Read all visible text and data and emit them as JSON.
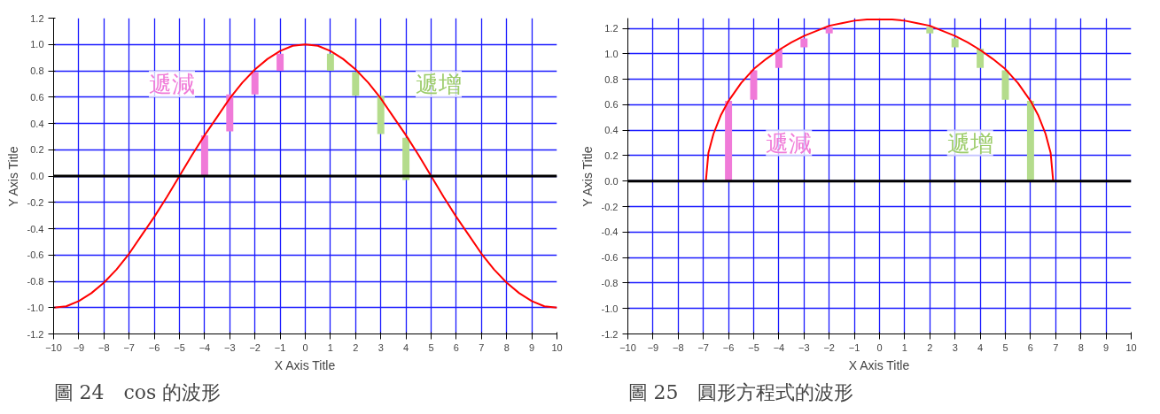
{
  "chart_data": [
    {
      "type": "line",
      "title": "圖 24　cos 的波形",
      "xlabel": "X Axis Title",
      "ylabel": "Y Axis Title",
      "xlim": [
        -10,
        10
      ],
      "ylim": [
        -1.2,
        1.2
      ],
      "xticks": [
        -10,
        -9,
        -8,
        -7,
        -6,
        -5,
        -4,
        -3,
        -2,
        -1,
        0,
        1,
        2,
        3,
        4,
        5,
        6,
        7,
        8,
        9,
        10
      ],
      "yticks": [
        {
          "value": -1.2,
          "label": "-1.2"
        },
        {
          "value": -1.0,
          "label": "-1.0"
        },
        {
          "value": -0.8,
          "label": "-0.8"
        },
        {
          "value": -0.6,
          "label": "-0.6"
        },
        {
          "value": -0.4,
          "label": "-0.4"
        },
        {
          "value": -0.2,
          "label": "-0.2"
        },
        {
          "value": 0,
          "label": "0.0"
        },
        {
          "value": 0.2,
          "label": "0.2"
        },
        {
          "value": 0.4,
          "label": "0.4"
        },
        {
          "value": 0.6,
          "label": "0.6"
        },
        {
          "value": 0.8,
          "label": "0.8"
        },
        {
          "value": 1.0,
          "label": "1.0"
        },
        {
          "value": 1.2,
          "label": "1.2"
        }
      ],
      "grid": true,
      "marker": "none",
      "line_style": "solid",
      "ref_lines": [
        {
          "axis": "y",
          "value": 0,
          "color": "#000000"
        }
      ],
      "annotations": [
        "遞減",
        "遞增"
      ],
      "series": [
        {
          "color": "#ff0000",
          "x": [
            -10,
            -9.5,
            -9,
            -8.5,
            -8,
            -7.5,
            -7,
            -6.5,
            -6,
            -5.5,
            -5,
            -4.5,
            -4,
            -3.5,
            -3,
            -2.5,
            -2,
            -1.5,
            -1,
            -0.5,
            0,
            0.5,
            1,
            1.5,
            2,
            2.5,
            3,
            3.5,
            4,
            4.5,
            5,
            5.5,
            6,
            6.5,
            7,
            7.5,
            8,
            8.5,
            9,
            9.5,
            10
          ],
          "values": [
            -1.0,
            -0.99,
            -0.95,
            -0.89,
            -0.81,
            -0.71,
            -0.59,
            -0.45,
            -0.31,
            -0.16,
            0.0,
            0.16,
            0.31,
            0.45,
            0.59,
            0.71,
            0.81,
            0.89,
            0.95,
            0.99,
            1.0,
            0.99,
            0.95,
            0.89,
            0.81,
            0.71,
            0.59,
            0.45,
            0.31,
            0.16,
            0.0,
            -0.16,
            -0.31,
            -0.45,
            -0.59,
            -0.71,
            -0.81,
            -0.89,
            -0.95,
            -0.99,
            -1.0
          ]
        },
        {
          "type": "bar",
          "color": "#f07ad8",
          "x": [
            -4,
            -3,
            -2,
            -1
          ],
          "base": [
            0,
            0.34,
            0.62,
            0.8
          ],
          "values": [
            0.31,
            0.28,
            0.17,
            0.13
          ]
        },
        {
          "type": "bar",
          "color": "#b4dc8c",
          "x": [
            1,
            2,
            3,
            4
          ],
          "base": [
            0.8,
            0.61,
            0.32,
            -0.03
          ],
          "values": [
            0.13,
            0.18,
            0.29,
            0.32
          ]
        }
      ]
    },
    {
      "type": "line",
      "title": "圖 25　圓形方程式的波形",
      "xlabel": "X Axis Title",
      "ylabel": "Y Axis Title",
      "xlim": [
        -10,
        10
      ],
      "ylim": [
        -1.2,
        1.28
      ],
      "xticks": [
        -10,
        -9,
        -8,
        -7,
        -6,
        -5,
        -4,
        -3,
        -2,
        -1,
        0,
        1,
        2,
        3,
        4,
        5,
        6,
        7,
        8,
        9,
        10
      ],
      "yticks": [
        {
          "value": -1.2,
          "label": "-1.2"
        },
        {
          "value": -1.0,
          "label": "-1.0"
        },
        {
          "value": -0.8,
          "label": "-0.8"
        },
        {
          "value": -0.6,
          "label": "-0.6"
        },
        {
          "value": -0.4,
          "label": "-0.4"
        },
        {
          "value": -0.2,
          "label": "-0.2"
        },
        {
          "value": 0,
          "label": "0.0"
        },
        {
          "value": 0.2,
          "label": "0.2"
        },
        {
          "value": 0.4,
          "label": "0.4"
        },
        {
          "value": 0.6,
          "label": "0.6"
        },
        {
          "value": 0.8,
          "label": "0.8"
        },
        {
          "value": 1.0,
          "label": "1.0"
        },
        {
          "value": 1.2,
          "label": "1.2"
        }
      ],
      "grid": true,
      "marker": "none",
      "line_style": "solid",
      "ref_lines": [
        {
          "axis": "y",
          "value": 0,
          "color": "#000000"
        }
      ],
      "annotations": [
        "遞減",
        "遞增"
      ],
      "series": [
        {
          "color": "#ff0000",
          "x": [
            -6.9,
            -6.8,
            -6.6,
            -6.3,
            -6,
            -5.5,
            -5,
            -4.5,
            -4,
            -3.5,
            -3,
            -2.5,
            -2,
            -1.5,
            -1,
            -0.5,
            0,
            0.5,
            1,
            1.5,
            2,
            2.5,
            3,
            3.5,
            4,
            4.5,
            5,
            5.5,
            6,
            6.3,
            6.6,
            6.8,
            6.9
          ],
          "values": [
            0.0,
            0.22,
            0.37,
            0.52,
            0.63,
            0.77,
            0.88,
            0.96,
            1.03,
            1.09,
            1.14,
            1.18,
            1.22,
            1.24,
            1.26,
            1.27,
            1.27,
            1.27,
            1.26,
            1.24,
            1.22,
            1.18,
            1.14,
            1.09,
            1.03,
            0.96,
            0.88,
            0.77,
            0.63,
            0.52,
            0.37,
            0.22,
            0.0
          ]
        },
        {
          "type": "bar",
          "color": "#f07ad8",
          "x": [
            -6,
            -5,
            -4,
            -3,
            -2
          ],
          "base": [
            0,
            0.64,
            0.89,
            1.05,
            1.16
          ],
          "values": [
            0.63,
            0.23,
            0.15,
            0.07,
            0.05
          ]
        },
        {
          "type": "bar",
          "color": "#b4dc8c",
          "x": [
            2,
            3,
            4,
            5,
            6
          ],
          "base": [
            1.16,
            1.05,
            0.89,
            0.64,
            0
          ],
          "values": [
            0.05,
            0.07,
            0.15,
            0.23,
            0.63
          ]
        }
      ]
    }
  ]
}
